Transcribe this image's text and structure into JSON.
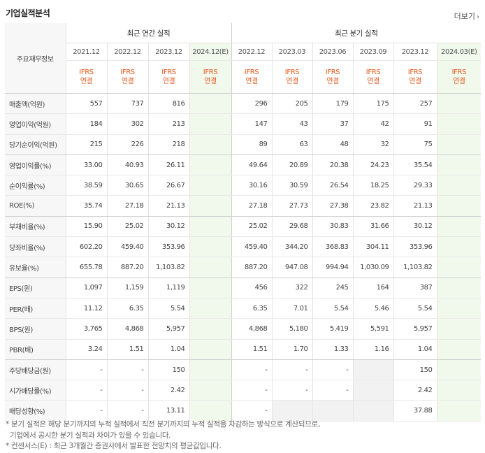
{
  "title": "기업실적분석",
  "more_label": "더보기",
  "table": {
    "row_header": "주요재무정보",
    "annual_group": "최근 연간 실적",
    "quarter_group": "최근 분기 실적",
    "annual_periods": [
      "2021.12",
      "2022.12",
      "2023.12",
      "2024.12(E)"
    ],
    "quarter_periods": [
      "2022.12",
      "2023.03",
      "2023.06",
      "2023.09",
      "2023.12",
      "2024.03(E)"
    ],
    "ifrs_top": "IFRS",
    "ifrs_bottom": "연결",
    "rows": [
      {
        "label": "매출액(억원)",
        "values": [
          "557",
          "737",
          "816",
          "",
          "296",
          "205",
          "179",
          "175",
          "257",
          ""
        ]
      },
      {
        "label": "영업이익(억원)",
        "values": [
          "184",
          "302",
          "213",
          "",
          "147",
          "43",
          "37",
          "42",
          "91",
          ""
        ]
      },
      {
        "label": "당기순이익(억원)",
        "values": [
          "215",
          "226",
          "218",
          "",
          "89",
          "63",
          "48",
          "32",
          "75",
          ""
        ]
      },
      {
        "label": "영업이익률(%)",
        "values": [
          "33.00",
          "40.93",
          "26.11",
          "",
          "49.64",
          "20.89",
          "20.38",
          "24.23",
          "35.54",
          ""
        ]
      },
      {
        "label": "순이익률(%)",
        "values": [
          "38.59",
          "30.65",
          "26.67",
          "",
          "30.16",
          "30.59",
          "26.54",
          "18.25",
          "29.33",
          ""
        ]
      },
      {
        "label": "ROE(%)",
        "values": [
          "35.74",
          "27.18",
          "21.13",
          "",
          "27.18",
          "27.73",
          "27.38",
          "23.82",
          "21.13",
          ""
        ]
      },
      {
        "label": "부채비율(%)",
        "values": [
          "15.90",
          "25.02",
          "30.12",
          "",
          "25.02",
          "29.68",
          "30.83",
          "31.66",
          "30.12",
          ""
        ]
      },
      {
        "label": "당좌비율(%)",
        "values": [
          "602.20",
          "459.40",
          "353.96",
          "",
          "459.40",
          "344.20",
          "368.83",
          "304.11",
          "353.96",
          ""
        ]
      },
      {
        "label": "유보율(%)",
        "values": [
          "655.78",
          "887.20",
          "1,103.82",
          "",
          "887.20",
          "947.08",
          "994.94",
          "1,030.09",
          "1,103.82",
          ""
        ]
      },
      {
        "label": "EPS(원)",
        "values": [
          "1,097",
          "1,159",
          "1,119",
          "",
          "456",
          "322",
          "245",
          "164",
          "387",
          ""
        ]
      },
      {
        "label": "PER(배)",
        "values": [
          "11.12",
          "6.35",
          "5.54",
          "",
          "6.35",
          "7.01",
          "5.54",
          "5.46",
          "5.54",
          ""
        ]
      },
      {
        "label": "BPS(원)",
        "values": [
          "3,765",
          "4,868",
          "5,957",
          "",
          "4,868",
          "5,180",
          "5,419",
          "5,591",
          "5,957",
          ""
        ]
      },
      {
        "label": "PBR(배)",
        "values": [
          "3.24",
          "1.51",
          "1.04",
          "",
          "1.51",
          "1.70",
          "1.33",
          "1.16",
          "1.04",
          ""
        ]
      },
      {
        "label": "주당배당금(원)",
        "values": [
          "-",
          "-",
          "150",
          "",
          "-",
          "-",
          "-",
          "",
          "150",
          ""
        ]
      },
      {
        "label": "시가배당률(%)",
        "values": [
          "-",
          "-",
          "2.42",
          "",
          "-",
          "-",
          "-",
          "",
          "2.42",
          ""
        ]
      },
      {
        "label": "배당성향(%)",
        "values": [
          "-",
          "-",
          "13.11",
          "",
          "-",
          "",
          "",
          "",
          "37.88",
          ""
        ]
      }
    ]
  },
  "notes": [
    "* 분기 실적은 해당 분기까지의 누적 실적에서 직전 분기까지의 누적 실적을 차감하는 방식으로 계산되므로,",
    "  기업에서 공시한 분기 실적과 차이가 있을 수 있습니다.",
    "* 컨센서스(E) : 최근 3개월간 증권사에서 발표한 전망치의 평균값입니다."
  ]
}
